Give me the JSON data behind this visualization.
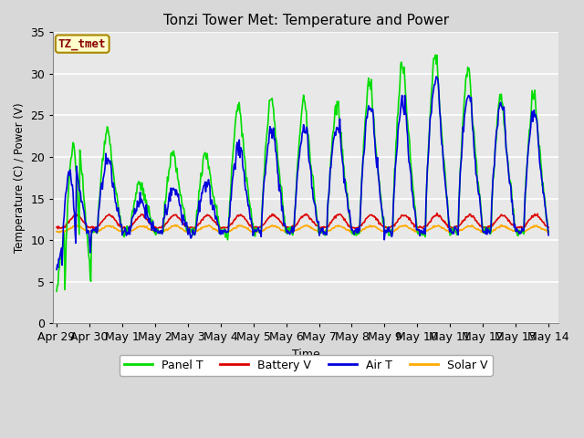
{
  "title": "Tonzi Tower Met: Temperature and Power",
  "xlabel": "Time",
  "ylabel": "Temperature (C) / Power (V)",
  "annotation": "TZ_tmet",
  "ylim": [
    0,
    35
  ],
  "colors": {
    "panel_t": "#00dd00",
    "battery_v": "#dd0000",
    "air_t": "#0000dd",
    "solar_v": "#ffaa00"
  },
  "legend_labels": [
    "Panel T",
    "Battery V",
    "Air T",
    "Solar V"
  ],
  "background_color": "#d8d8d8",
  "plot_bg_color": "#e8e8e8",
  "grid_color": "#ffffff",
  "annotation_bg": "#ffffcc",
  "annotation_border": "#aa8800",
  "x_tick_labels": [
    "Apr 29",
    "Apr 30",
    "May 1",
    "May 2",
    "May 3",
    "May 4",
    "May 5",
    "May 6",
    "May 7",
    "May 8",
    "May 9",
    "May 10",
    "May 11",
    "May 12",
    "May 13",
    "May 14"
  ],
  "x_tick_positions": [
    0,
    1,
    2,
    3,
    4,
    5,
    6,
    7,
    8,
    9,
    10,
    11,
    12,
    13,
    14,
    15
  ]
}
